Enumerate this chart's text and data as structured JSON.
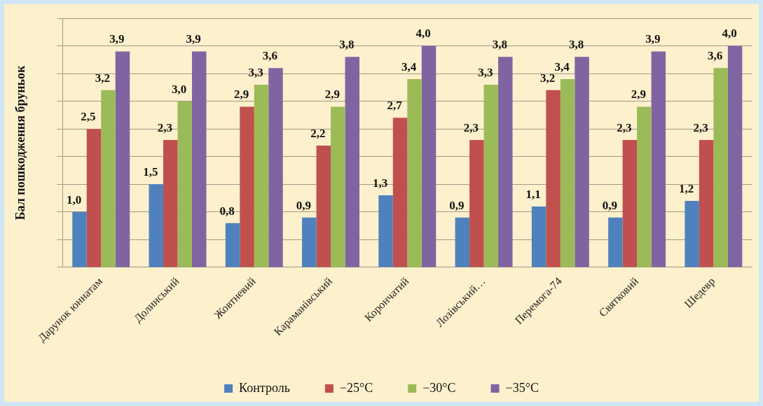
{
  "chart_data": {
    "type": "bar",
    "ylabel": "Бал пошкодження бруньок",
    "categories": [
      "Дарунок юннатам",
      "Долинський",
      "Жовтневий",
      "Караманівський",
      "Корончатий",
      "Лозівський…",
      "Перемога-74",
      "Святковий",
      "Шедевр"
    ],
    "series": [
      {
        "name": "Контроль",
        "color": "#4f81bd",
        "values": [
          1.0,
          1.5,
          0.8,
          0.9,
          1.3,
          0.9,
          1.1,
          0.9,
          1.2
        ],
        "value_labels": [
          "1,0",
          "1,5",
          "0,8",
          "0,9",
          "1,3",
          "0,9",
          "1,1",
          "0,9",
          "1,2"
        ]
      },
      {
        "name": "−25°C",
        "color": "#c0504d",
        "values": [
          2.5,
          2.3,
          2.9,
          2.2,
          2.7,
          2.3,
          3.2,
          2.3,
          2.3
        ],
        "value_labels": [
          "2,5",
          "2,3",
          "2,9",
          "2,2",
          "2,7",
          "2,3",
          "3,2",
          "2,3",
          "2,3"
        ]
      },
      {
        "name": "−30°C",
        "color": "#9bbb59",
        "values": [
          3.2,
          3.0,
          3.3,
          2.9,
          3.4,
          3.3,
          3.4,
          2.9,
          3.6
        ],
        "value_labels": [
          "3,2",
          "3,0",
          "3,3",
          "2,9",
          "3,4",
          "3,3",
          "3,4",
          "2,9",
          "3,6"
        ]
      },
      {
        "name": "−35°C",
        "color": "#8064a2",
        "values": [
          3.9,
          3.9,
          3.6,
          3.8,
          4.0,
          3.8,
          3.8,
          3.9,
          4.0
        ],
        "value_labels": [
          "3,9",
          "3,9",
          "3,6",
          "3,8",
          "4,0",
          "3,8",
          "3,8",
          "3,9",
          "4,0"
        ]
      }
    ],
    "ylim": [
      0,
      4.5
    ],
    "tick_labels": "x",
    "grid": "y",
    "legend": "bottom"
  }
}
